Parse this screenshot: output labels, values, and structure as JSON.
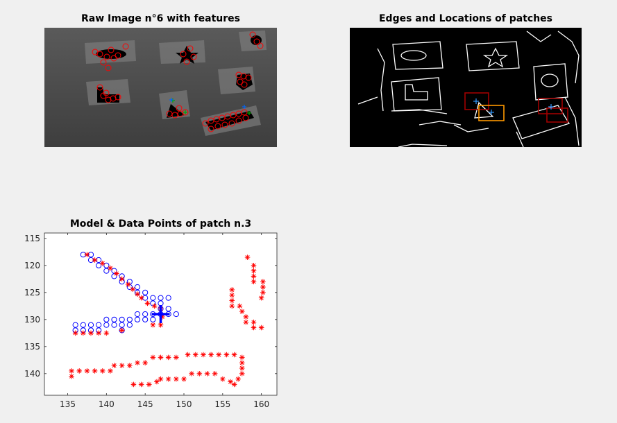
{
  "figure": {
    "panel1": {
      "title": "Raw Image n°6 with features"
    },
    "panel2": {
      "title": "Edges and Locations of patches"
    },
    "panel3": {
      "title": "Model & Data Points of patch n.3"
    }
  },
  "colors": {
    "figure_bg": "#f0f0f0",
    "model_points": "#0000ff",
    "data_points": "#ff0000",
    "feature_circles": "#ff0000",
    "patch_box_red": "#a00000",
    "patch_box_orange": "#ff9900"
  },
  "chart_data": [
    {
      "type": "image",
      "title": "Raw Image n°6 with features"
    },
    {
      "type": "image",
      "title": "Edges and Locations of patches"
    },
    {
      "type": "scatter",
      "title": "Model & Data Points of patch n.3",
      "xlabel": "",
      "ylabel": "",
      "xlim": [
        132,
        162
      ],
      "ylim": [
        114,
        144
      ],
      "y_reversed": true,
      "grid": false,
      "xticks": [
        135,
        140,
        145,
        150,
        155,
        160
      ],
      "yticks": [
        115,
        120,
        125,
        130,
        135,
        140
      ],
      "series": [
        {
          "marker": "circle",
          "color": "#0000ff",
          "points": [
            [
              137,
              118
            ],
            [
              138,
              118
            ],
            [
              138,
              119
            ],
            [
              139,
              119
            ],
            [
              139,
              120
            ],
            [
              140,
              120
            ],
            [
              140,
              121
            ],
            [
              141,
              121
            ],
            [
              141,
              122
            ],
            [
              142,
              122
            ],
            [
              142,
              123
            ],
            [
              143,
              123
            ],
            [
              143,
              124
            ],
            [
              144,
              124
            ],
            [
              144,
              125
            ],
            [
              145,
              125
            ],
            [
              145,
              126
            ],
            [
              146,
              126
            ],
            [
              146,
              127
            ],
            [
              147,
              127
            ],
            [
              147,
              128
            ],
            [
              148,
              128
            ],
            [
              136,
              131
            ],
            [
              137,
              131
            ],
            [
              138,
              131
            ],
            [
              139,
              131
            ],
            [
              140,
              131
            ],
            [
              141,
              131
            ],
            [
              142,
              131
            ],
            [
              143,
              131
            ],
            [
              140,
              130
            ],
            [
              141,
              130
            ],
            [
              142,
              130
            ],
            [
              143,
              130
            ],
            [
              144,
              130
            ],
            [
              145,
              130
            ],
            [
              146,
              130
            ],
            [
              144,
              129
            ],
            [
              145,
              129
            ],
            [
              146,
              129
            ],
            [
              147,
              129
            ],
            [
              148,
              129
            ],
            [
              149,
              129
            ],
            [
              147,
              126
            ],
            [
              148,
              126
            ],
            [
              136,
              132
            ],
            [
              137,
              132
            ],
            [
              138,
              132
            ],
            [
              139,
              132
            ],
            [
              142,
              132
            ]
          ]
        },
        {
          "marker": "star",
          "color": "#ff0000",
          "points": [
            [
              137.5,
              118
            ],
            [
              138.5,
              119
            ],
            [
              139.5,
              119.6
            ],
            [
              140.5,
              120.5
            ],
            [
              141.3,
              121.5
            ],
            [
              142,
              122.5
            ],
            [
              142.8,
              123.5
            ],
            [
              143.4,
              124.4
            ],
            [
              144,
              125.3
            ],
            [
              144.5,
              126
            ],
            [
              145.3,
              127
            ],
            [
              146.2,
              127.5
            ],
            [
              147,
              128
            ],
            [
              147.2,
              129.5
            ],
            [
              147,
              131
            ],
            [
              146,
              131
            ],
            [
              136,
              132.5
            ],
            [
              137,
              132.5
            ],
            [
              138,
              132.5
            ],
            [
              139,
              132.5
            ],
            [
              140,
              132.5
            ],
            [
              142,
              132
            ],
            [
              135.5,
              139.5
            ],
            [
              135.5,
              140.5
            ],
            [
              136.5,
              139.5
            ],
            [
              137.5,
              139.5
            ],
            [
              138.5,
              139.5
            ],
            [
              139.5,
              139.5
            ],
            [
              140.5,
              139.5
            ],
            [
              141,
              138.5
            ],
            [
              142,
              138.5
            ],
            [
              143,
              138.5
            ],
            [
              144,
              138
            ],
            [
              145,
              138
            ],
            [
              146,
              137
            ],
            [
              147,
              137
            ],
            [
              148,
              137
            ],
            [
              149,
              137
            ],
            [
              150.5,
              136.5
            ],
            [
              151.5,
              136.5
            ],
            [
              152.5,
              136.5
            ],
            [
              153.5,
              136.5
            ],
            [
              154.5,
              136.5
            ],
            [
              155.5,
              136.5
            ],
            [
              156.5,
              136.5
            ],
            [
              157.5,
              137
            ],
            [
              157.5,
              138
            ],
            [
              157.5,
              139
            ],
            [
              157.5,
              140
            ],
            [
              157,
              141
            ],
            [
              156.5,
              142
            ],
            [
              143.5,
              142
            ],
            [
              144.5,
              142
            ],
            [
              145.5,
              142
            ],
            [
              146.5,
              141.5
            ],
            [
              147,
              141
            ],
            [
              148,
              141
            ],
            [
              149,
              141
            ],
            [
              150,
              141
            ],
            [
              151,
              140
            ],
            [
              152,
              140
            ],
            [
              153,
              140
            ],
            [
              154,
              140
            ],
            [
              155,
              141
            ],
            [
              156,
              141.5
            ],
            [
              156.2,
              124.5
            ],
            [
              156.2,
              125.5
            ],
            [
              156.2,
              126.5
            ],
            [
              156.2,
              127.5
            ],
            [
              157.2,
              127.5
            ],
            [
              157.5,
              128.5
            ],
            [
              158,
              129.5
            ],
            [
              158,
              130.5
            ],
            [
              159,
              130.5
            ],
            [
              159,
              131.5
            ],
            [
              160,
              131.5
            ],
            [
              158.2,
              118.5
            ],
            [
              159,
              120
            ],
            [
              159,
              121
            ],
            [
              159,
              122
            ],
            [
              159,
              123
            ],
            [
              160.2,
              123
            ],
            [
              160.2,
              124
            ],
            [
              160.2,
              125
            ],
            [
              160,
              126
            ]
          ]
        },
        {
          "marker": "plus",
          "color": "#0000ff",
          "points": [
            [
              147,
              129
            ]
          ]
        }
      ]
    }
  ]
}
